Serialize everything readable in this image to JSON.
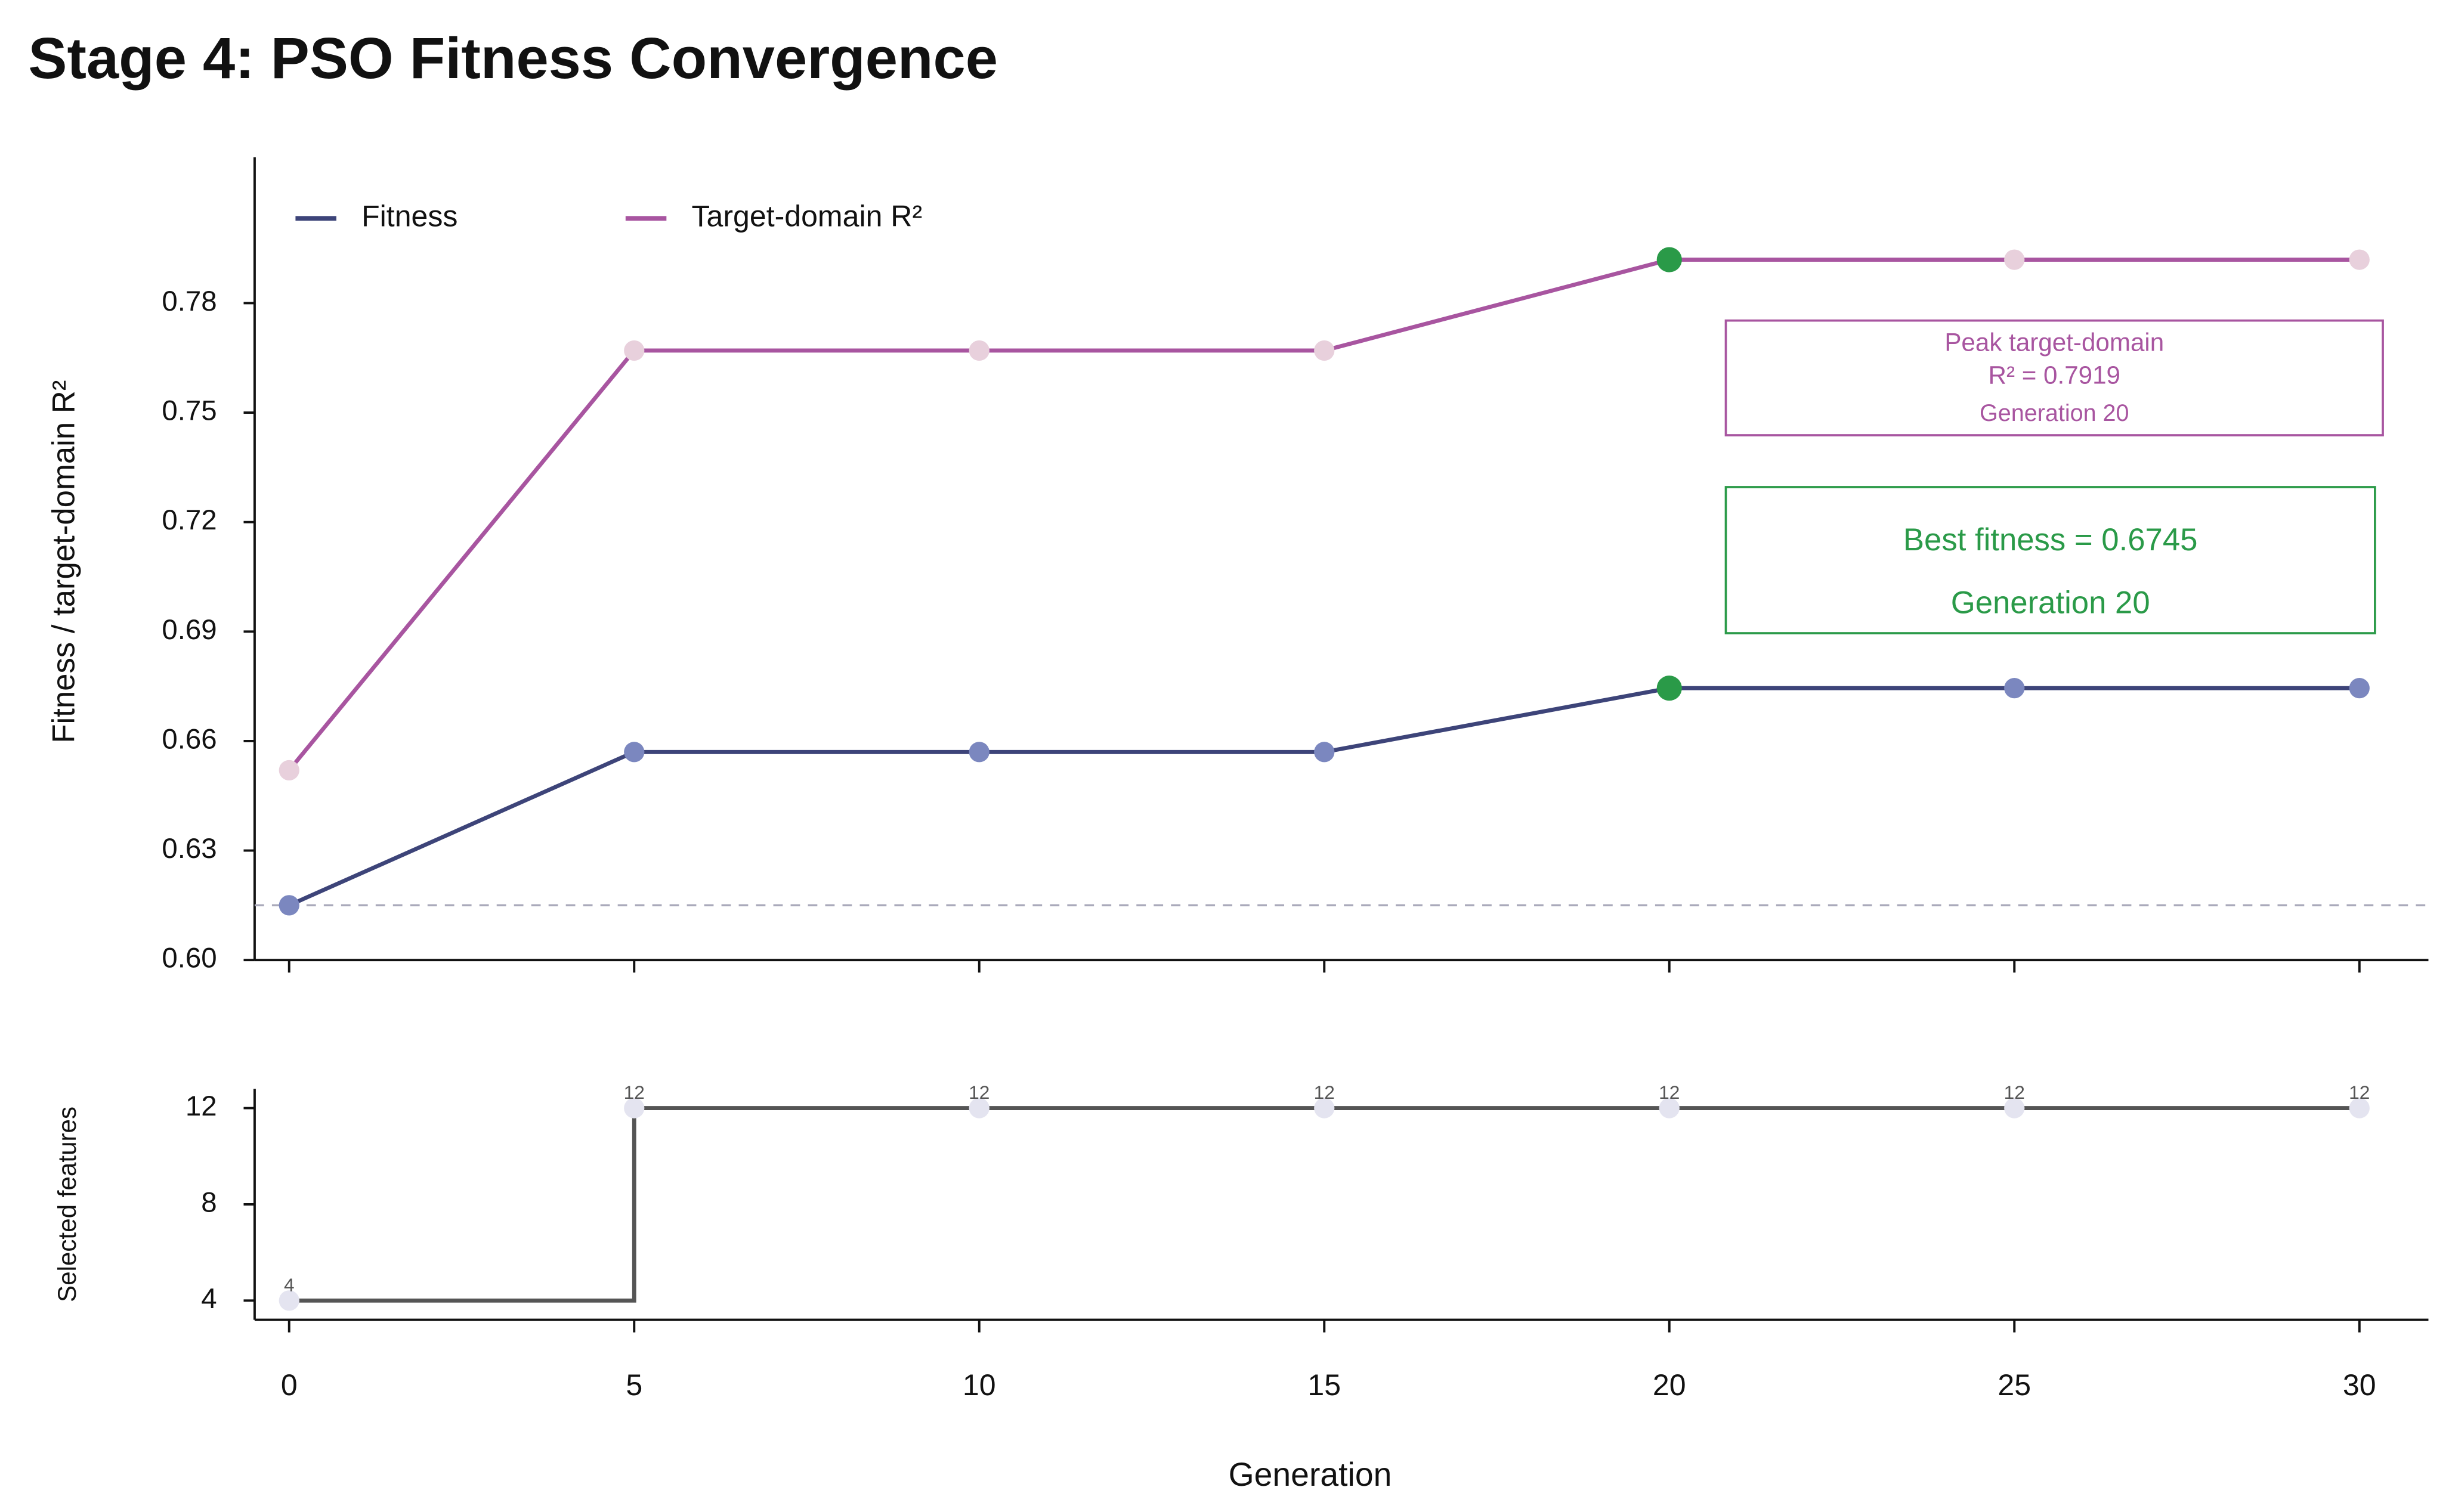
{
  "title": "Stage 4: PSO Fitness Convergence",
  "chart_data": [
    {
      "type": "line",
      "ylabel": "Fitness / target-domain R²",
      "x": [
        0,
        5,
        10,
        15,
        20,
        25,
        30
      ],
      "series": [
        {
          "name": "Fitness",
          "color": "#3d4479",
          "marker_color": "#7b87bf",
          "values": [
            0.615,
            0.657,
            0.657,
            0.657,
            0.6745,
            0.6745,
            0.6745
          ]
        },
        {
          "name": "Target-domain R²",
          "color": "#a855a0",
          "marker_color": "#e8d0dc",
          "values": [
            0.652,
            0.767,
            0.767,
            0.767,
            0.7919,
            0.7919,
            0.7919
          ]
        }
      ],
      "highlight": {
        "x": 20,
        "color": "#2a9a48"
      },
      "reference_line": 0.615,
      "annotations": [
        {
          "lines": [
            "Peak target-domain",
            "R² = 0.7919",
            "Generation 20"
          ],
          "color": "#a855a0"
        },
        {
          "lines": [
            "Best fitness = 0.6745",
            "Generation 20"
          ],
          "color": "#2a9a48"
        }
      ],
      "xlim": [
        -0.5,
        31
      ],
      "xticks": [
        0,
        5,
        10,
        15,
        20,
        25,
        30
      ],
      "ylim": [
        0.6,
        0.82
      ],
      "yticks": [
        {
          "value": 0.6,
          "label": "0.60"
        },
        0.63,
        0.66,
        0.69,
        0.72,
        0.75,
        0.78
      ],
      "legend": "upper left"
    },
    {
      "type": "step",
      "xlabel": "Generation",
      "ylabel": "Selected features",
      "x": [
        0,
        5,
        10,
        15,
        20,
        25,
        30
      ],
      "series": [
        {
          "name": "Selected features",
          "color": "#555555",
          "marker_color": "#e4e4f0",
          "values": [
            4,
            12,
            12,
            12,
            12,
            12,
            12
          ]
        }
      ],
      "xlim": [
        -0.5,
        31
      ],
      "xticks": [
        0,
        5,
        10,
        15,
        20,
        25,
        30
      ],
      "ylim": [
        3.2,
        12.8
      ],
      "yticks": [
        4,
        8,
        12
      ]
    }
  ]
}
